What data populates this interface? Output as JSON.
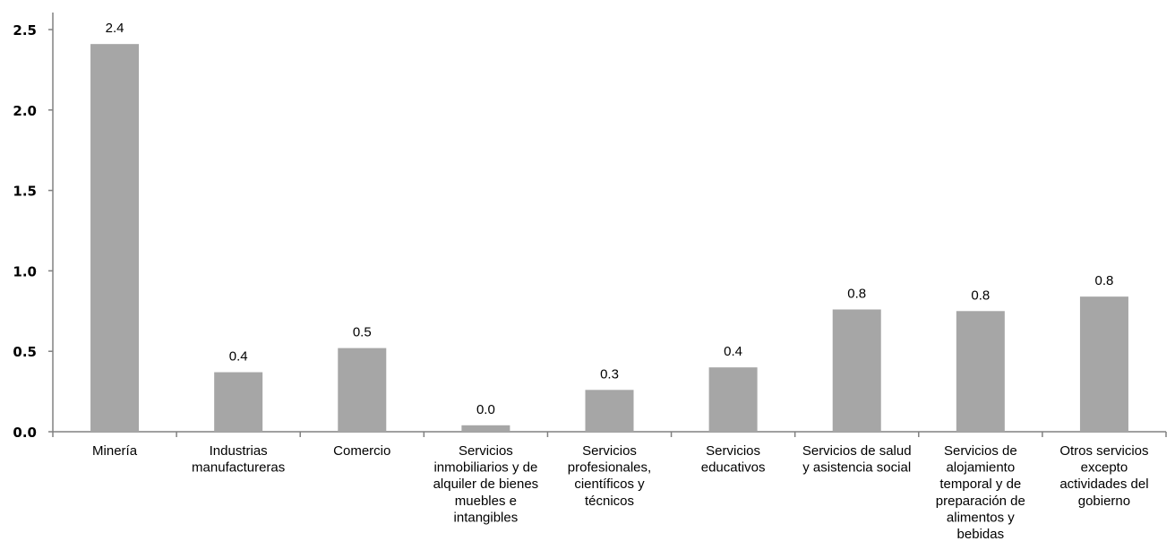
{
  "chart_data": {
    "type": "bar",
    "categories": [
      "Minería",
      "Industrias manufactureras",
      "Comercio",
      "Servicios inmobiliarios y de alquiler de bienes muebles e intangibles",
      "Servicios profesionales, científicos y técnicos",
      "Servicios educativos",
      "Servicios de salud y asistencia social",
      "Servicios de alojamiento temporal y de preparación de alimentos y bebidas",
      "Otros servicios excepto actividades del gobierno"
    ],
    "category_lines": [
      [
        "Minería"
      ],
      [
        "Industrias",
        "manufactureras"
      ],
      [
        "Comercio"
      ],
      [
        "Servicios",
        "inmobiliarios y de",
        "alquiler de bienes",
        "muebles e",
        "intangibles"
      ],
      [
        "Servicios",
        "profesionales,",
        "científicos y",
        "técnicos"
      ],
      [
        "Servicios",
        "educativos"
      ],
      [
        "Servicios de salud",
        "y asistencia social"
      ],
      [
        "Servicios de",
        "alojamiento",
        "temporal y de",
        "preparación de",
        "alimentos y",
        "bebidas"
      ],
      [
        "Otros servicios",
        "excepto",
        "actividades del",
        "gobierno"
      ]
    ],
    "values": [
      2.41,
      0.37,
      0.52,
      0.04,
      0.26,
      0.4,
      0.76,
      0.75,
      0.84
    ],
    "data_labels": [
      "2.4",
      "0.4",
      "0.5",
      "0.0",
      "0.3",
      "0.4",
      "0.8",
      "0.8",
      "0.8"
    ],
    "yticks": [
      "0.0",
      "0.5",
      "1.0",
      "1.5",
      "2.0",
      "2.5"
    ],
    "ylim": [
      0,
      2.5
    ],
    "bar_color": "#a6a6a6",
    "axis_color": "#808080",
    "grid": false,
    "title": "",
    "xlabel": "",
    "ylabel": ""
  }
}
